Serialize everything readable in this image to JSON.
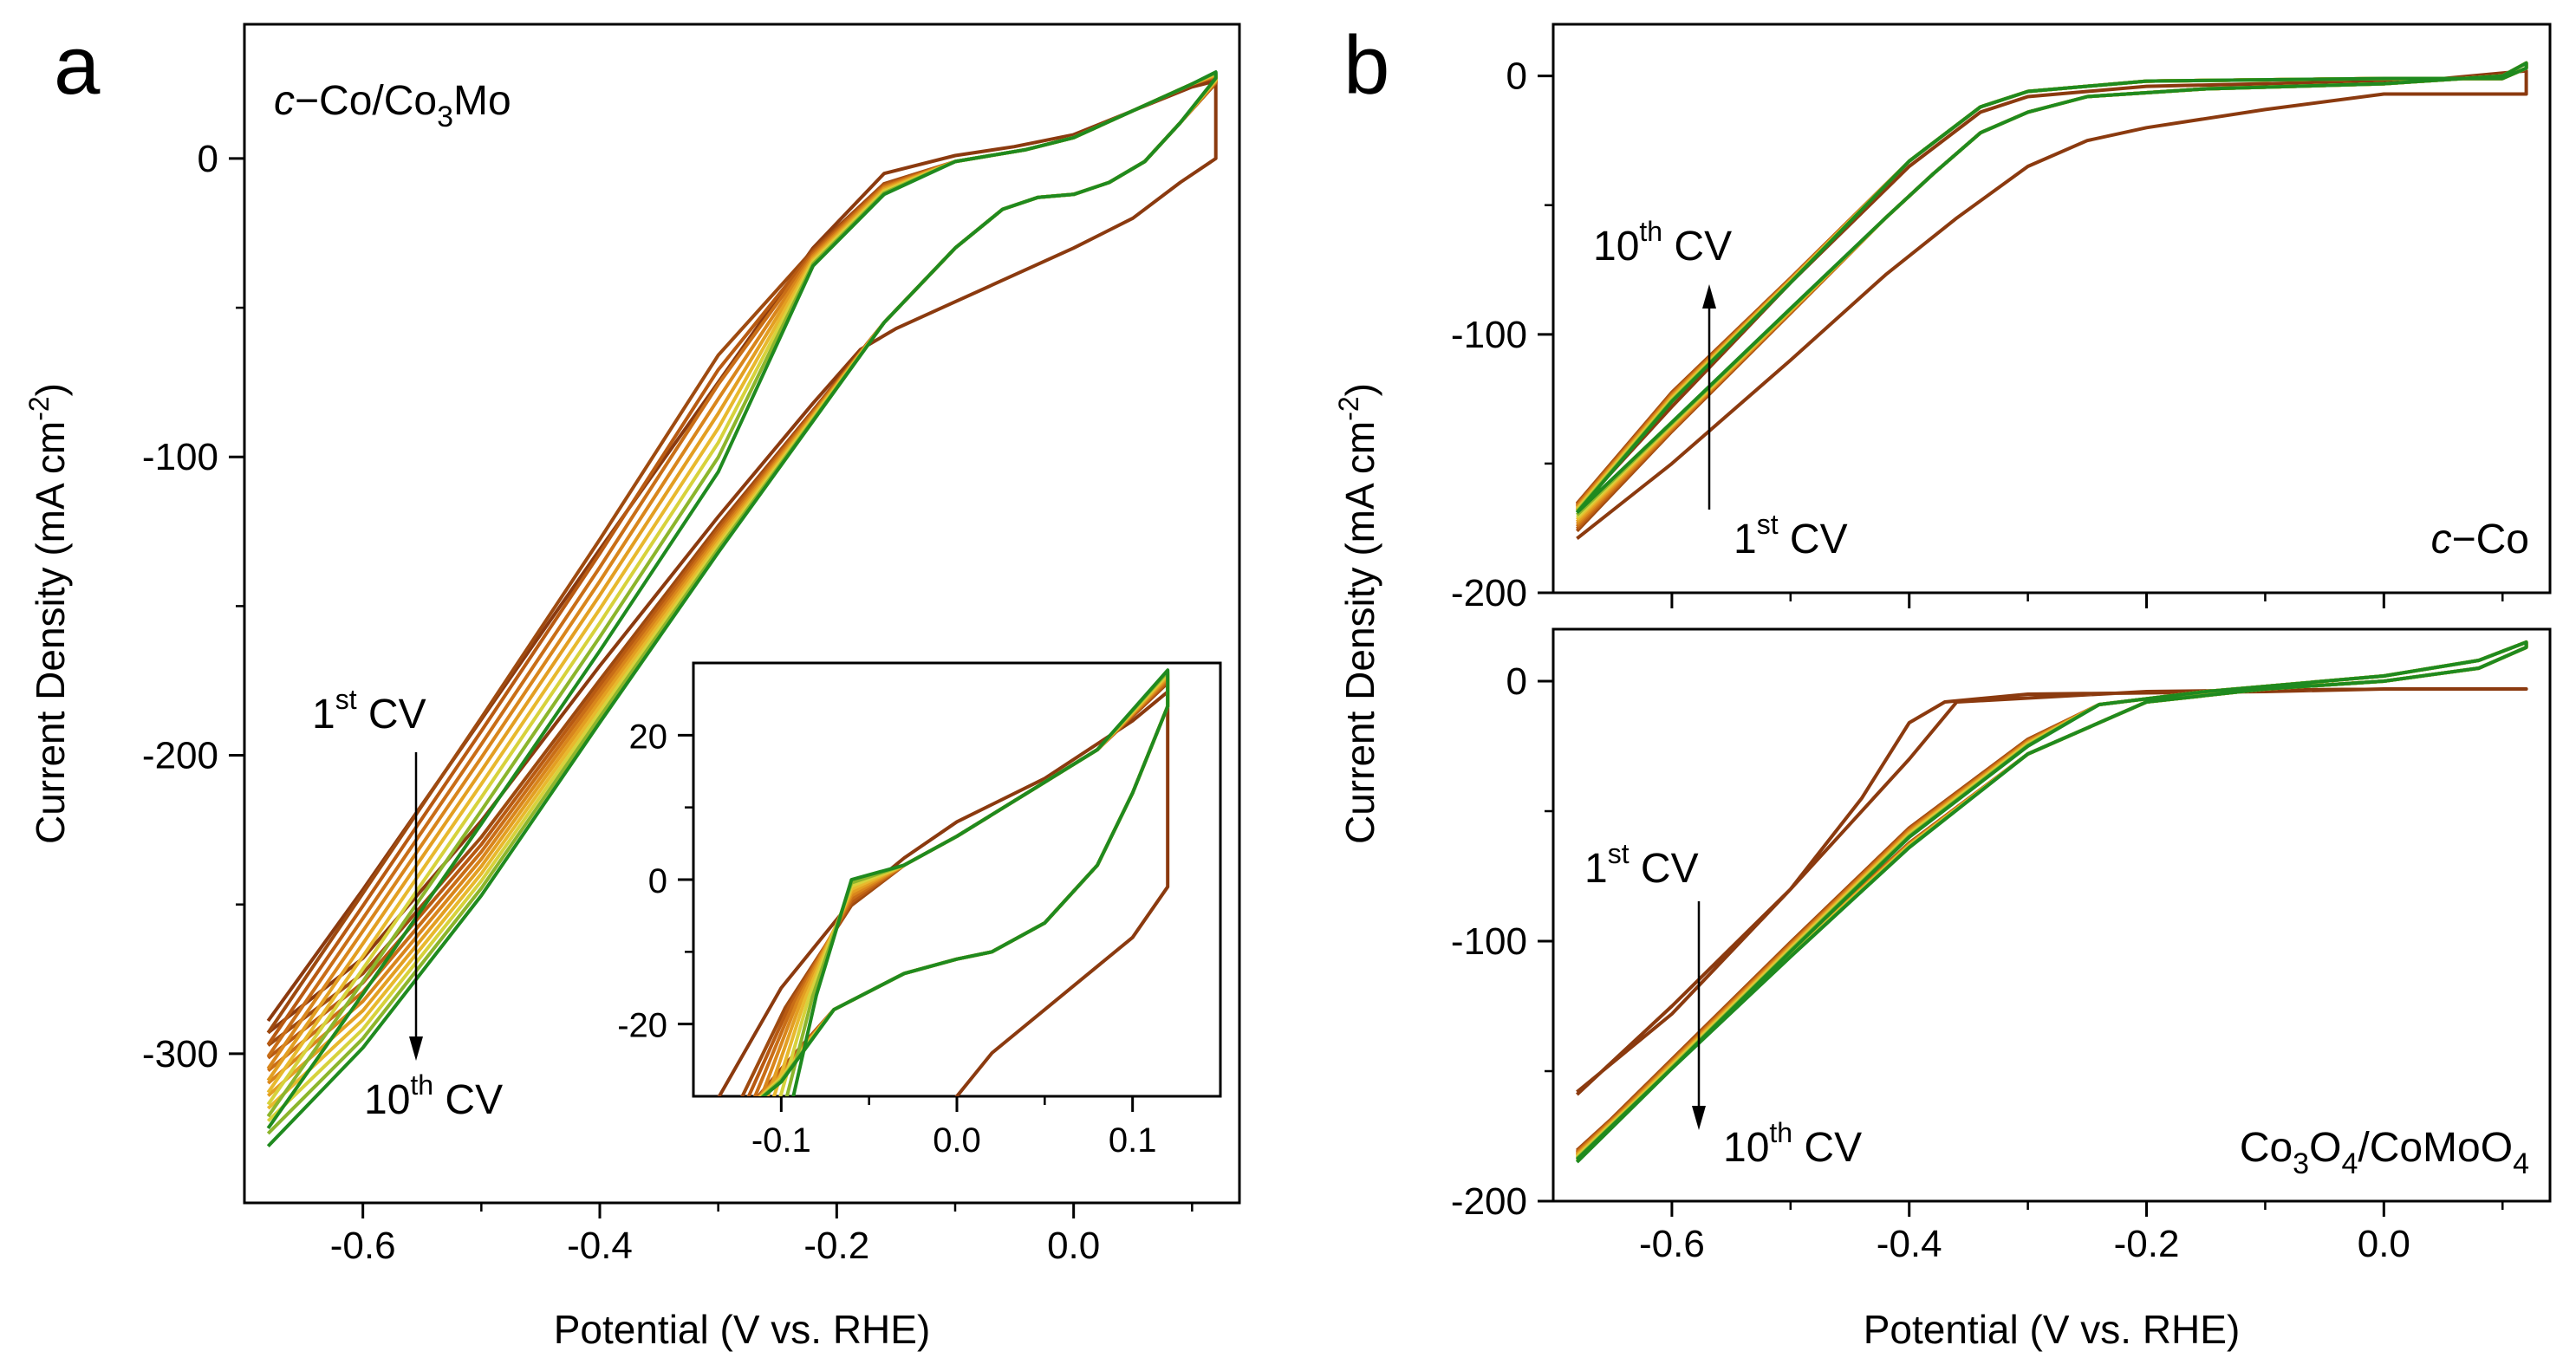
{
  "colors": {
    "cycles": [
      "#8B3A0F",
      "#9E4A10",
      "#B85A12",
      "#C96E17",
      "#D9861C",
      "#E39F22",
      "#E8B92E",
      "#D7D23C",
      "#8CB52C",
      "#1F8A1F"
    ]
  },
  "chart_data": [
    {
      "id": "a",
      "type": "line",
      "panel_letter": "a",
      "label_parts": {
        "italic": "c",
        "rest_pre": "−Co/Co",
        "sub": "3",
        "rest_post": "Mo"
      },
      "xlabel": "Potential (V vs. RHE)",
      "ylabel": "Current Density (mA cm",
      "ylabel_sup": "-2",
      "ylabel_end": ")",
      "xlim": [
        -0.7,
        0.14
      ],
      "ylim": [
        -350,
        45
      ],
      "xticks": [
        -0.6,
        -0.4,
        -0.2,
        0.0
      ],
      "xtick_labels": [
        "-0.6",
        "-0.4",
        "-0.2",
        "0.0"
      ],
      "yticks": [
        -300,
        -200,
        -100,
        0
      ],
      "ytick_labels": [
        "-300",
        "-200",
        "-100",
        "0"
      ],
      "annotations": {
        "first": {
          "num": "1",
          "sup": "st",
          "text": " CV"
        },
        "last": {
          "num": "10",
          "sup": "th",
          "text": " CV"
        }
      },
      "cycles": 10,
      "series_note": "",
      "inset": {
        "xlim": [
          -0.15,
          0.15
        ],
        "ylim": [
          -30,
          30
        ],
        "xticks": [
          -0.1,
          0.0,
          0.1
        ],
        "xtick_labels": [
          "-0.1",
          "0.0",
          "0.1"
        ],
        "yticks": [
          -20,
          0,
          20
        ],
        "ytick_labels": [
          "-20",
          "0",
          "20"
        ]
      }
    },
    {
      "id": "b-top",
      "type": "line",
      "panel_letter": "b",
      "label_parts": {
        "italic": "c",
        "rest_pre": "−Co",
        "sub": "",
        "rest_post": ""
      },
      "xlim": [
        -0.7,
        0.14
      ],
      "ylim": [
        -200,
        20
      ],
      "yticks": [
        -200,
        -100,
        0
      ],
      "ytick_labels": [
        "-200",
        "-100",
        "0"
      ],
      "annotations": {
        "first": {
          "num": "1",
          "sup": "st",
          "text": " CV"
        },
        "last": {
          "num": "10",
          "sup": "th",
          "text": " CV"
        }
      },
      "cycles": 10
    },
    {
      "id": "b-bottom",
      "type": "line",
      "label_parts": {
        "pre": "Co",
        "sub1": "3",
        "mid": "O",
        "sub2": "4",
        "post": "/CoMoO",
        "sub3": "4"
      },
      "xlabel": "Potential (V vs. RHE)",
      "ylabel": "Current Density (mA cm",
      "ylabel_sup": "-2",
      "ylabel_end": ")",
      "xlim": [
        -0.7,
        0.14
      ],
      "ylim": [
        -200,
        20
      ],
      "xticks": [
        -0.6,
        -0.4,
        -0.2,
        0.0
      ],
      "xtick_labels": [
        "-0.6",
        "-0.4",
        "-0.2",
        "0.0"
      ],
      "yticks": [
        -200,
        -100,
        0
      ],
      "ytick_labels": [
        "-200",
        "-100",
        "0"
      ],
      "annotations": {
        "first": {
          "num": "1",
          "sup": "st",
          "text": " CV"
        },
        "last": {
          "num": "10",
          "sup": "th",
          "text": " CV"
        }
      },
      "cycles": 10
    }
  ]
}
